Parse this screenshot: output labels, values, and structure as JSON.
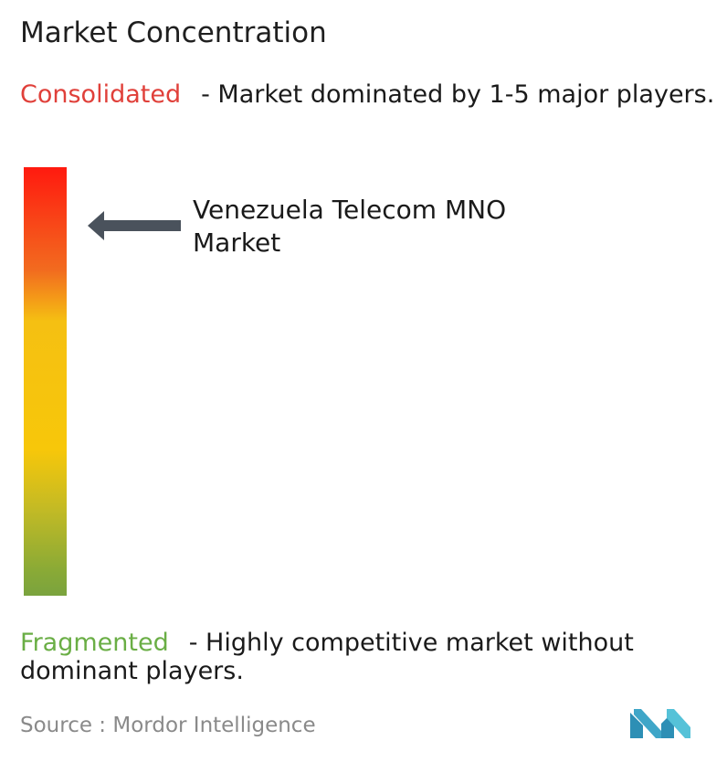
{
  "title": "Market Concentration",
  "top": {
    "label": "Consolidated",
    "text": "- Market dominated by 1-5 major players."
  },
  "bottom": {
    "label": "Fragmented",
    "text": "- Highly competitive market without dominant players."
  },
  "market": {
    "name": "Venezuela Telecom MNO Market"
  },
  "source": {
    "label": "Source :",
    "value": "Mordor Intelligence"
  },
  "colors": {
    "consolidated": "#e0403a",
    "fragmented": "#6aae45",
    "arrow": "#4a525c",
    "logo": "#3fa6c8"
  },
  "icons": {
    "arrow": "arrow-left-icon",
    "logo": "mordor-logo-icon"
  }
}
